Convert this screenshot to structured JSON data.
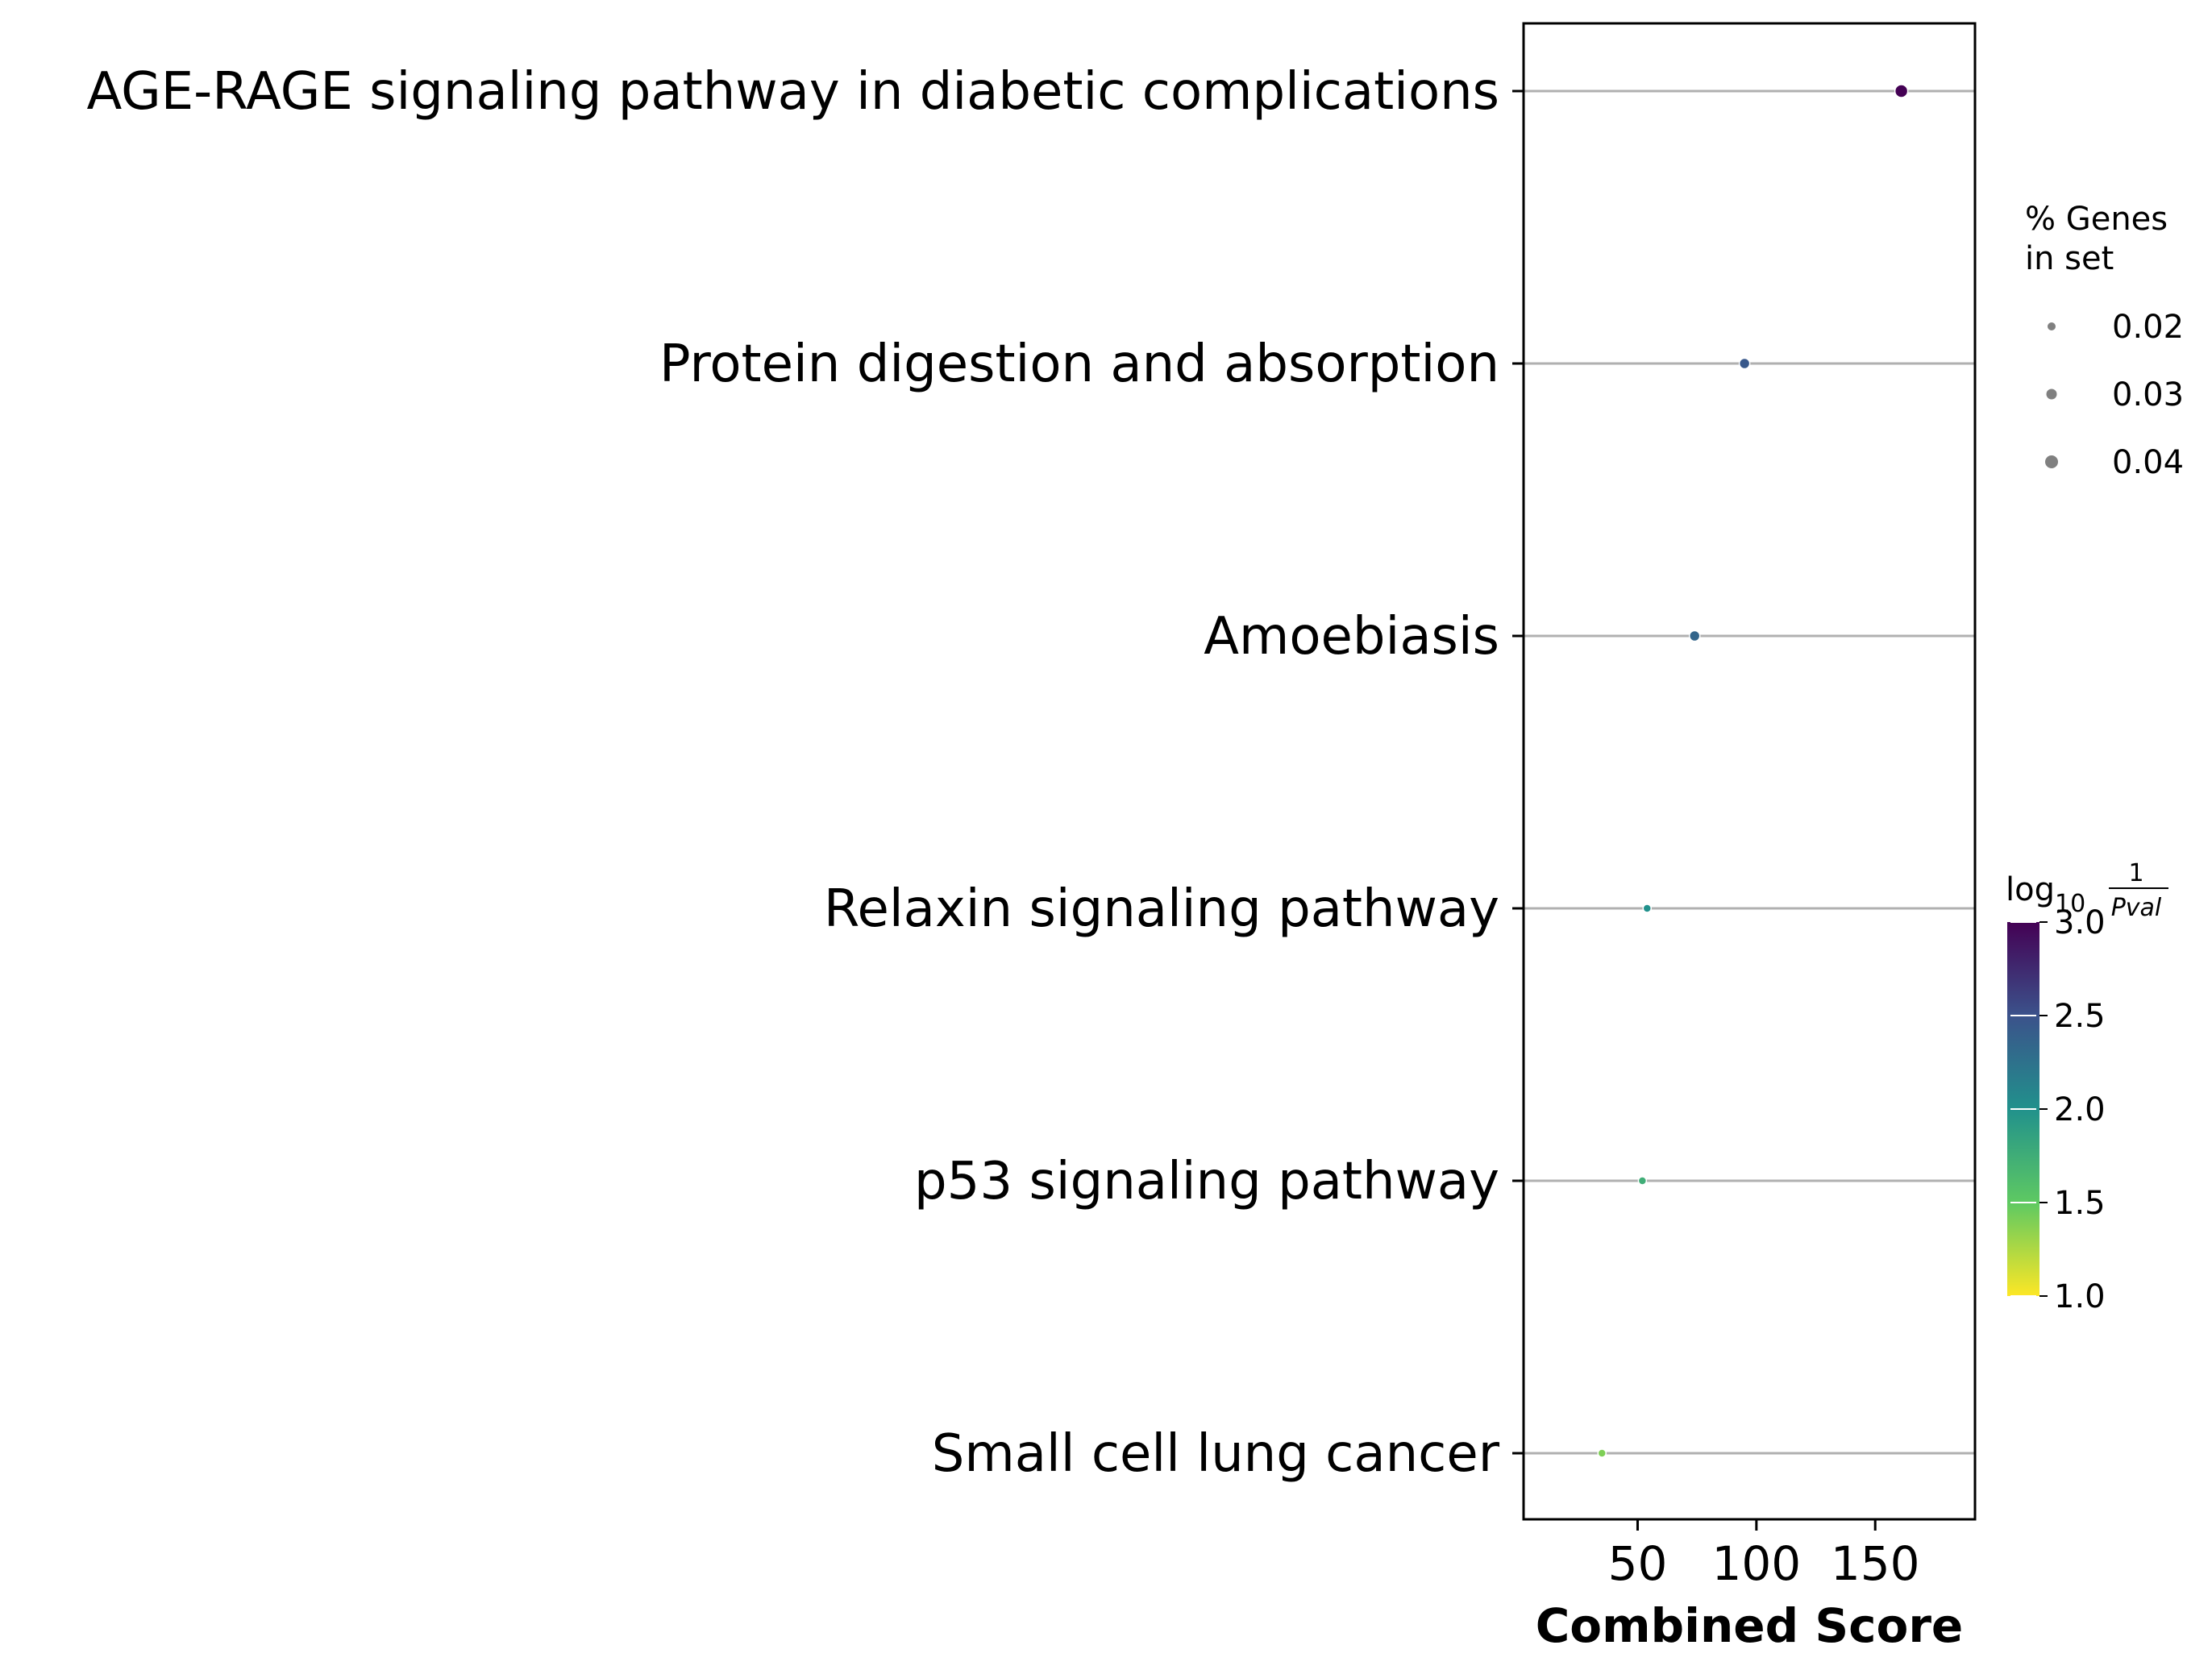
{
  "chart_data": {
    "type": "scatter",
    "title": "",
    "xlabel": "Combined Score",
    "ylabel": "",
    "xlim": [
      2,
      192
    ],
    "xticks": [
      50,
      100,
      150
    ],
    "xtick_labels": [
      "50",
      "100",
      "150"
    ],
    "grid": "horizontal lines at each category",
    "categories": [
      "AGE-RAGE signaling pathway in diabetic complications",
      "Protein digestion and absorption",
      "Amoebiasis",
      "Relaxin signaling pathway",
      "p53 signaling pathway",
      "Small cell lung cancer"
    ],
    "points": [
      {
        "term": "AGE-RAGE signaling pathway in diabetic complications",
        "combined_score": 161,
        "log10_inv_pval": 3.0,
        "pct_genes": 0.04
      },
      {
        "term": "Protein digestion and absorption",
        "combined_score": 95,
        "log10_inv_pval": 2.45,
        "pct_genes": 0.03
      },
      {
        "term": "Amoebiasis",
        "combined_score": 74,
        "log10_inv_pval": 2.35,
        "pct_genes": 0.03
      },
      {
        "term": "Relaxin signaling pathway",
        "combined_score": 54,
        "log10_inv_pval": 2.0,
        "pct_genes": 0.02
      },
      {
        "term": "p53 signaling pathway",
        "combined_score": 52,
        "log10_inv_pval": 1.75,
        "pct_genes": 0.02
      },
      {
        "term": "Small cell lung cancer",
        "combined_score": 35,
        "log10_inv_pval": 1.4,
        "pct_genes": 0.02
      }
    ],
    "size_legend": {
      "title_line1": "% Genes",
      "title_line2": "in set",
      "entries": [
        {
          "label": "0.02",
          "value": 0.02
        },
        {
          "label": "0.03",
          "value": 0.03
        },
        {
          "label": "0.04",
          "value": 0.04
        }
      ],
      "placement": "right"
    },
    "colorbar": {
      "title_log": "log",
      "title_sub": "10",
      "title_num": "1",
      "title_den": "Pval",
      "range": [
        1.0,
        3.0
      ],
      "colormap": "viridis_r",
      "ticks": [
        {
          "label": "3.0",
          "value": 3.0
        },
        {
          "label": "2.5",
          "value": 2.5
        },
        {
          "label": "2.0",
          "value": 2.0
        },
        {
          "label": "1.5",
          "value": 1.5
        },
        {
          "label": "1.0",
          "value": 1.0
        }
      ],
      "placement": "right"
    },
    "colors": {
      "grid_line": "#b0b0b0",
      "axis": "#000000",
      "legend_marker": "#808080",
      "viridis_stops": [
        "#440154",
        "#3b528b",
        "#21918c",
        "#5ec962",
        "#fde725"
      ]
    }
  }
}
